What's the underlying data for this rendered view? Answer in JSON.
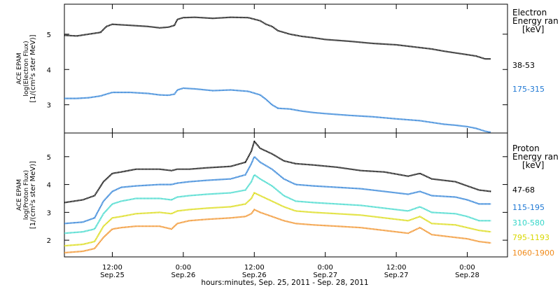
{
  "x_label": "hours:minutes, Sep. 25, 2011 - Sep. 28, 2011",
  "chart_data": [
    {
      "type": "line",
      "title": "",
      "ylabel_lines": [
        "ACE EPAM",
        "log(Electron Flux)",
        "[1/(cm²s ster MeV)]"
      ],
      "legend_title_lines": [
        "Electron",
        "Energy ran",
        "[keV]"
      ],
      "x_ticks": [
        {
          "hours": 12,
          "time": "12:00",
          "date": "Sep.25"
        },
        {
          "hours": 24,
          "time": "0:00",
          "date": "Sep.26"
        },
        {
          "hours": 36,
          "time": "12:00",
          "date": "Sep.26"
        },
        {
          "hours": 48,
          "time": "0:00",
          "date": "Sep.27"
        },
        {
          "hours": 60,
          "time": "12:00",
          "date": "Sep.27"
        },
        {
          "hours": 72,
          "time": "0:00",
          "date": "Sep.28"
        }
      ],
      "xlim": [
        3.9,
        78.8
      ],
      "ylim": [
        2.2,
        5.85
      ],
      "y_ticks": [
        "3",
        "4",
        "5"
      ],
      "series": [
        {
          "name": "38-53",
          "color": "#000000",
          "x": [
            3.9,
            6,
            8,
            10,
            11,
            12,
            15,
            18,
            20,
            21.5,
            22.5,
            23,
            24,
            26,
            29,
            32,
            35,
            37,
            38,
            39,
            40,
            42,
            44,
            46,
            48,
            52,
            56,
            60,
            64,
            66,
            68,
            70,
            72,
            73.5,
            75,
            76
          ],
          "y": [
            4.97,
            4.95,
            5.0,
            5.05,
            5.22,
            5.28,
            5.25,
            5.22,
            5.18,
            5.2,
            5.25,
            5.42,
            5.47,
            5.48,
            5.45,
            5.48,
            5.47,
            5.38,
            5.28,
            5.22,
            5.1,
            5.0,
            4.94,
            4.9,
            4.85,
            4.8,
            4.74,
            4.7,
            4.62,
            4.58,
            4.52,
            4.47,
            4.42,
            4.38,
            4.3,
            4.3
          ]
        },
        {
          "name": "175-315",
          "color": "#1f78d4",
          "x": [
            3.9,
            6,
            8,
            10,
            11,
            12,
            15,
            18,
            20,
            21.5,
            22.5,
            23,
            24,
            26,
            29,
            32,
            35,
            37,
            38,
            39,
            40,
            42,
            44,
            46,
            48,
            52,
            56,
            60,
            64,
            66,
            68,
            70,
            72,
            73.5,
            75,
            76
          ],
          "y": [
            3.18,
            3.18,
            3.2,
            3.25,
            3.3,
            3.35,
            3.35,
            3.32,
            3.28,
            3.27,
            3.3,
            3.42,
            3.47,
            3.45,
            3.4,
            3.42,
            3.38,
            3.28,
            3.15,
            3.0,
            2.9,
            2.88,
            2.82,
            2.78,
            2.75,
            2.7,
            2.66,
            2.6,
            2.55,
            2.5,
            2.45,
            2.42,
            2.38,
            2.33,
            2.25,
            2.22
          ]
        }
      ]
    },
    {
      "type": "line",
      "title": "",
      "ylabel_lines": [
        "ACE EPAM",
        "log(Proton Flux)",
        "[1/(cm²s ster MeV)]"
      ],
      "legend_title_lines": [
        "Proton",
        "Energy ran",
        "[keV]"
      ],
      "x_ticks": [
        {
          "hours": 12,
          "time": "12:00",
          "date": "Sep.25"
        },
        {
          "hours": 24,
          "time": "0:00",
          "date": "Sep.26"
        },
        {
          "hours": 36,
          "time": "12:00",
          "date": "Sep.26"
        },
        {
          "hours": 48,
          "time": "0:00",
          "date": "Sep.27"
        },
        {
          "hours": 60,
          "time": "12:00",
          "date": "Sep.27"
        },
        {
          "hours": 72,
          "time": "0:00",
          "date": "Sep.28"
        }
      ],
      "xlim": [
        3.9,
        78.8
      ],
      "ylim": [
        1.4,
        5.85
      ],
      "y_ticks": [
        "2",
        "3",
        "4",
        "5"
      ],
      "series": [
        {
          "name": "47-68",
          "color": "#000000",
          "x": [
            3.9,
            7,
            9,
            10.5,
            12,
            13.5,
            16,
            20,
            22,
            23,
            25,
            28,
            32,
            34.5,
            35.5,
            36,
            37,
            39,
            41,
            43,
            46,
            50,
            54,
            58,
            62,
            64,
            66,
            70,
            72,
            74,
            76
          ],
          "y": [
            3.35,
            3.45,
            3.6,
            4.1,
            4.4,
            4.45,
            4.55,
            4.55,
            4.5,
            4.55,
            4.55,
            4.6,
            4.65,
            4.8,
            5.2,
            5.55,
            5.3,
            5.1,
            4.85,
            4.75,
            4.7,
            4.62,
            4.5,
            4.45,
            4.3,
            4.4,
            4.2,
            4.1,
            3.95,
            3.8,
            3.75
          ]
        },
        {
          "name": "115-195",
          "color": "#1f78d4",
          "x": [
            3.9,
            7,
            9,
            10.5,
            12,
            13.5,
            16,
            20,
            22,
            23,
            25,
            28,
            32,
            34.5,
            35.5,
            36,
            37,
            39,
            41,
            43,
            46,
            50,
            54,
            58,
            62,
            64,
            66,
            70,
            72,
            74,
            76
          ],
          "y": [
            2.6,
            2.65,
            2.8,
            3.4,
            3.75,
            3.9,
            3.95,
            4.0,
            4.0,
            4.05,
            4.1,
            4.15,
            4.2,
            4.35,
            4.75,
            5.0,
            4.8,
            4.55,
            4.2,
            4.0,
            3.95,
            3.9,
            3.85,
            3.75,
            3.65,
            3.75,
            3.6,
            3.55,
            3.45,
            3.3,
            3.3
          ]
        },
        {
          "name": "310-580",
          "color": "#33d6c8",
          "x": [
            3.9,
            7,
            9,
            10.5,
            12,
            13.5,
            16,
            20,
            22,
            23,
            25,
            28,
            32,
            34.5,
            35.5,
            36,
            37,
            39,
            41,
            43,
            46,
            50,
            54,
            58,
            62,
            64,
            66,
            70,
            72,
            74,
            76
          ],
          "y": [
            2.25,
            2.3,
            2.4,
            2.95,
            3.3,
            3.4,
            3.5,
            3.5,
            3.45,
            3.55,
            3.6,
            3.65,
            3.7,
            3.8,
            4.1,
            4.35,
            4.2,
            3.95,
            3.6,
            3.4,
            3.35,
            3.3,
            3.25,
            3.15,
            3.05,
            3.2,
            3.0,
            2.95,
            2.85,
            2.7,
            2.7
          ]
        },
        {
          "name": "795-1193",
          "color": "#d8d800",
          "x": [
            3.9,
            7,
            9,
            10.5,
            12,
            13.5,
            16,
            20,
            22,
            23,
            25,
            28,
            32,
            34.5,
            35.5,
            36,
            37,
            39,
            41,
            43,
            46,
            50,
            54,
            58,
            62,
            64,
            66,
            70,
            72,
            74,
            76
          ],
          "y": [
            1.8,
            1.85,
            1.95,
            2.5,
            2.8,
            2.85,
            2.95,
            3.0,
            2.95,
            3.05,
            3.1,
            3.15,
            3.2,
            3.3,
            3.5,
            3.7,
            3.6,
            3.4,
            3.2,
            3.05,
            3.0,
            2.95,
            2.9,
            2.8,
            2.7,
            2.85,
            2.6,
            2.55,
            2.45,
            2.35,
            2.3
          ]
        },
        {
          "name": "1060-1900",
          "color": "#f08a1a",
          "x": [
            3.9,
            7,
            9,
            10.5,
            12,
            13.5,
            16,
            20,
            22,
            23,
            25,
            28,
            32,
            34.5,
            35.5,
            36,
            37,
            39,
            41,
            43,
            46,
            50,
            54,
            58,
            62,
            64,
            66,
            70,
            72,
            74,
            76
          ],
          "y": [
            1.55,
            1.6,
            1.7,
            2.1,
            2.4,
            2.45,
            2.5,
            2.5,
            2.4,
            2.6,
            2.7,
            2.75,
            2.8,
            2.85,
            2.95,
            3.1,
            3.0,
            2.85,
            2.7,
            2.6,
            2.55,
            2.5,
            2.45,
            2.35,
            2.25,
            2.45,
            2.2,
            2.1,
            2.05,
            1.95,
            1.9
          ]
        }
      ]
    }
  ]
}
